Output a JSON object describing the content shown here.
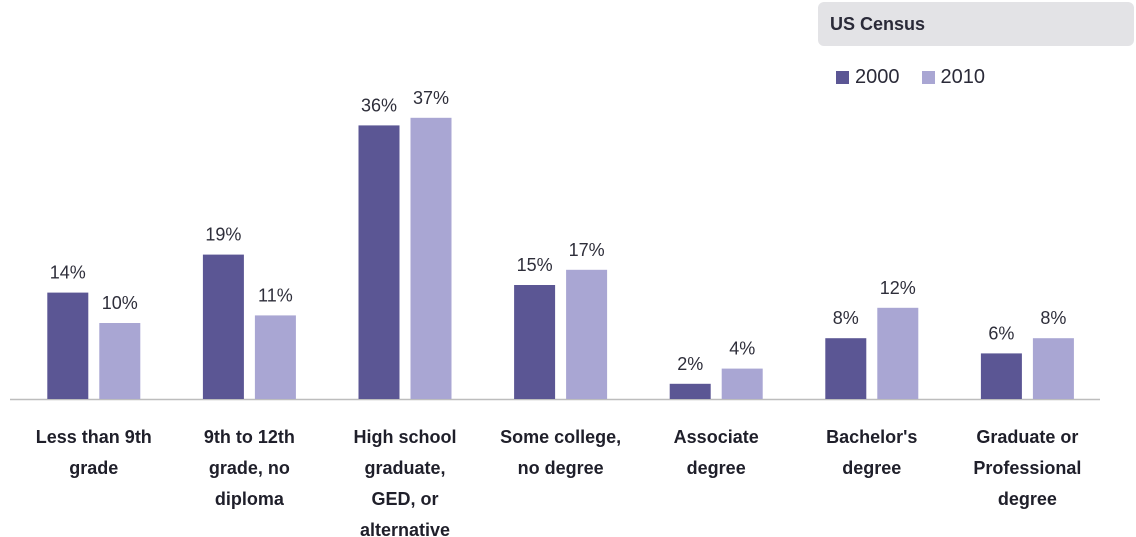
{
  "chart_data": {
    "type": "bar",
    "legend_title": "US Census",
    "categories": [
      "Less than 9th grade",
      "9th to 12th grade, no diploma",
      "High school graduate, GED, or alternative",
      "Some college, no degree",
      "Associate degree",
      "Bachelor's degree",
      "Graduate or Professional degree"
    ],
    "category_lines": [
      [
        "Less than 9th",
        "grade"
      ],
      [
        "9th to 12th",
        "grade, no",
        "diploma"
      ],
      [
        "High school",
        "graduate,",
        "GED, or",
        "alternative"
      ],
      [
        "Some college,",
        "no degree"
      ],
      [
        "Associate",
        "degree"
      ],
      [
        "Bachelor's",
        "degree"
      ],
      [
        "Graduate or",
        "Professional",
        "degree"
      ]
    ],
    "series": [
      {
        "name": "2000",
        "color": "#5b5694",
        "values": [
          14,
          19,
          36,
          15,
          2,
          8,
          6
        ],
        "labels": [
          "14%",
          "19%",
          "36%",
          "15%",
          "2%",
          "8%",
          "6%"
        ]
      },
      {
        "name": "2010",
        "color": "#a9a6d3",
        "values": [
          10,
          11,
          37,
          17,
          4,
          12,
          8
        ],
        "labels": [
          "10%",
          "11%",
          "37%",
          "17%",
          "4%",
          "12%",
          "8%"
        ]
      }
    ],
    "legend_position": "top-right",
    "grid": false,
    "ylim": [
      0,
      40
    ]
  }
}
